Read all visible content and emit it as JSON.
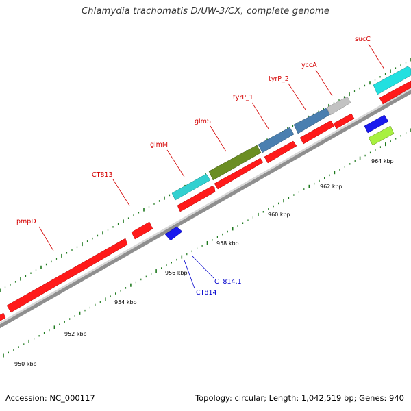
{
  "title": "Chlamydia trachomatis D/UW-3/CX, complete genome",
  "footer": {
    "accession": "Accession: NC_000117",
    "summary": "Topology: circular; Length: 1,042,519 bp; Genes: 940"
  },
  "colors": {
    "backbone": "#8f8f8f",
    "gene_label": "#d40000",
    "small_label": "#0000cc",
    "tick": "#1f7a1f"
  },
  "ruler": [
    "950 kbp",
    "952 kbp",
    "954 kbp",
    "956 kbp",
    "958 kbp",
    "960 kbp",
    "962 kbp",
    "964 kbp"
  ],
  "genes": [
    {
      "label": "pmpD",
      "color": "#ff2020"
    },
    {
      "label": "CT813",
      "color": "#ff2020"
    },
    {
      "label": "glmM",
      "color": "#22cccc"
    },
    {
      "label": "glmS",
      "color": "#6b8e23"
    },
    {
      "label": "tyrP_1",
      "color": "#4682b4"
    },
    {
      "label": "tyrP_2",
      "color": "#4682b4"
    },
    {
      "label": "yccA",
      "color": "#c0c0c0"
    },
    {
      "label": "sucC",
      "color": "#22dddd"
    },
    {
      "label": "CT814",
      "color": "#1a1aee"
    },
    {
      "label": "CT814.1",
      "color": "#1a1aee"
    }
  ]
}
